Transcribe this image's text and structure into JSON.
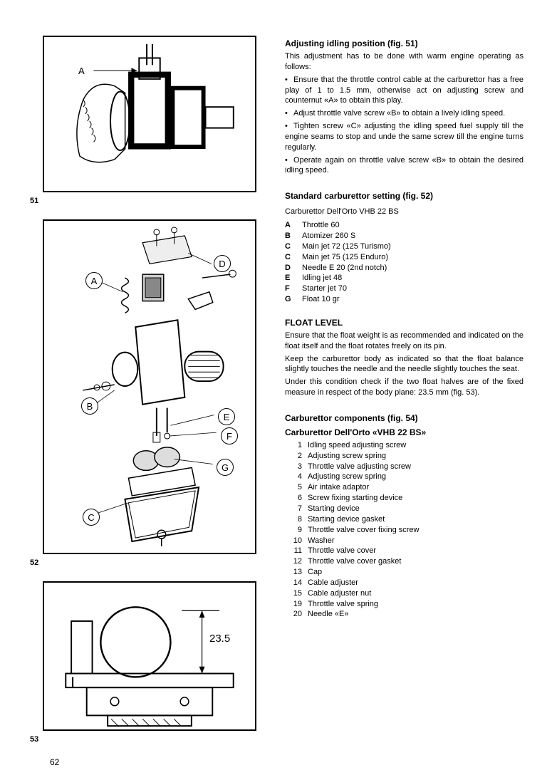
{
  "page_number": "62",
  "figures": {
    "fig51": {
      "label": "51",
      "callout_A": "A"
    },
    "fig52": {
      "label": "52",
      "callouts": {
        "A": "A",
        "B": "B",
        "C": "C",
        "D": "D",
        "E": "E",
        "F": "F",
        "G": "G"
      }
    },
    "fig53": {
      "label": "53",
      "dimension": "23.5"
    }
  },
  "sections": {
    "adjusting": {
      "title": "Adjusting idling position (fig. 51)",
      "intro": "This adjustment has to be done with warm engine operating as follows:",
      "b1": "Ensure that the throttle control cable at the carburettor has a free play of 1 to 1.5 mm, otherwise act on adjusting screw and counternut «A» to obtain this play.",
      "b2": "Adjust throttle valve screw «B» to obtain a lively idling speed.",
      "b3": "Tighten screw «C» adjusting the idling speed fuel supply till the engine seams to stop and unde the same screw till the engine turns regularly.",
      "b4": "Operate again on throttle valve screw «B» to obtain the desired idling speed."
    },
    "standard": {
      "title": "Standard carburettor setting (fig. 52)",
      "subtitle": "Carburettor Dell'Orto VHB 22 BS",
      "items": [
        {
          "k": "A",
          "v": "Throttle 60"
        },
        {
          "k": "B",
          "v": "Atomizer 260 S"
        },
        {
          "k": "C",
          "v": "Main jet 72 (125 Turismo)"
        },
        {
          "k": "C",
          "v": "Main jet 75 (125 Enduro)"
        },
        {
          "k": "D",
          "v": "Needle E 20 (2nd notch)"
        },
        {
          "k": "E",
          "v": "Idling jet 48"
        },
        {
          "k": "F",
          "v": "Starter jet 70"
        },
        {
          "k": "G",
          "v": "Float 10 gr"
        }
      ]
    },
    "float": {
      "title": "FLOAT LEVEL",
      "p1": "Ensure that the float weight is as recommended and indicated on the float itself and the float rotates freely on its pin.",
      "p2": "Keep the carburettor body as indicated so that the float balance slightly touches the needle and the needle slightly touches the seat.",
      "p3": "Under this condition check if the two float halves are of the fixed measure in respect of the body plane: 23.5 mm (fig. 53)."
    },
    "components": {
      "title": "Carburettor components (fig. 54)",
      "subtitle": "Carburettor Dell'Orto «VHB 22 BS»",
      "items": [
        {
          "k": "1",
          "v": "Idling speed adjusting screw"
        },
        {
          "k": "2",
          "v": "Adjusting screw spring"
        },
        {
          "k": "3",
          "v": "Throttle valve adjusting screw"
        },
        {
          "k": "4",
          "v": "Adjusting screw spring"
        },
        {
          "k": "5",
          "v": "Air intake adaptor"
        },
        {
          "k": "6",
          "v": "Screw fixing starting device"
        },
        {
          "k": "7",
          "v": "Starting device"
        },
        {
          "k": "8",
          "v": "Starting device gasket"
        },
        {
          "k": "9",
          "v": "Throttle valve cover fixing screw"
        },
        {
          "k": "10",
          "v": "Washer"
        },
        {
          "k": "11",
          "v": "Throttle valve cover"
        },
        {
          "k": "12",
          "v": "Throttle valve cover gasket"
        },
        {
          "k": "13",
          "v": "Cap"
        },
        {
          "k": "14",
          "v": "Cable adjuster"
        },
        {
          "k": "15",
          "v": "Cable adjuster nut"
        },
        {
          "k": "19",
          "v": "Throttle valve spring"
        },
        {
          "k": "20",
          "v": "Needle «E»"
        }
      ]
    }
  }
}
